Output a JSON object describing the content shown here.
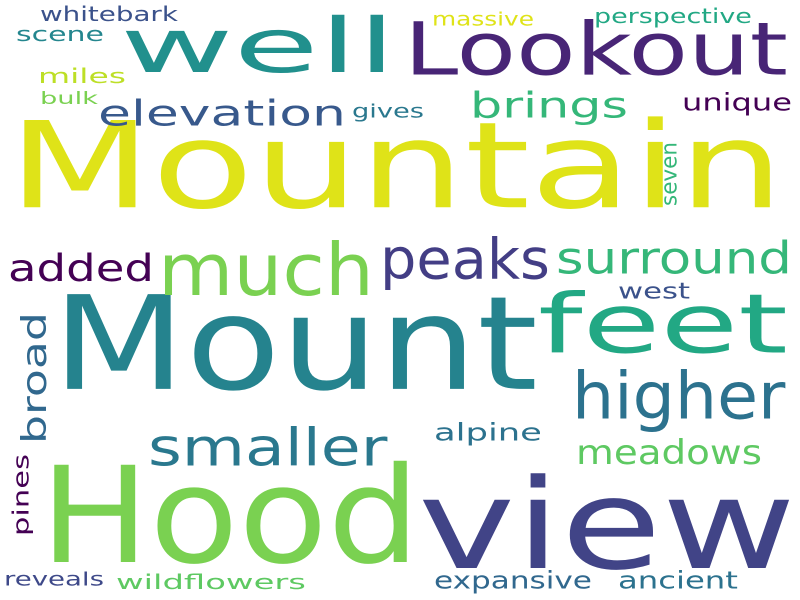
{
  "words": [
    {
      "id": "mountain",
      "text": "Mountain",
      "color": "#dfe318"
    },
    {
      "id": "mount",
      "text": "Mount",
      "color": "#25838e"
    },
    {
      "id": "hood",
      "text": "Hood",
      "color": "#7ad151"
    },
    {
      "id": "view",
      "text": "view",
      "color": "#414487"
    },
    {
      "id": "well",
      "text": "well",
      "color": "#21908d"
    },
    {
      "id": "lookout",
      "text": "Lookout",
      "color": "#482576"
    },
    {
      "id": "much",
      "text": "much",
      "color": "#7ad151"
    },
    {
      "id": "feet",
      "text": "feet",
      "color": "#22a884"
    },
    {
      "id": "higher",
      "text": "higher",
      "color": "#2c728e"
    },
    {
      "id": "peaks",
      "text": "peaks",
      "color": "#433e85"
    },
    {
      "id": "surround",
      "text": "surround",
      "color": "#35b779"
    },
    {
      "id": "smaller",
      "text": "smaller",
      "color": "#2a788e"
    },
    {
      "id": "added",
      "text": "added",
      "color": "#440154"
    },
    {
      "id": "elevation",
      "text": "elevation",
      "color": "#38598c"
    },
    {
      "id": "brings",
      "text": "brings",
      "color": "#35b779"
    },
    {
      "id": "meadows",
      "text": "meadows",
      "color": "#5ec962"
    },
    {
      "id": "broad",
      "text": "broad",
      "color": "#31688e"
    },
    {
      "id": "unique",
      "text": "unique",
      "color": "#440154"
    },
    {
      "id": "seven",
      "text": "seven",
      "color": "#35b779"
    },
    {
      "id": "expansive",
      "text": "expansive",
      "color": "#31688e"
    },
    {
      "id": "ancient",
      "text": "ancient",
      "color": "#2c728e"
    },
    {
      "id": "alpine",
      "text": "alpine",
      "color": "#2c728e"
    },
    {
      "id": "west",
      "text": "west",
      "color": "#3b528b"
    },
    {
      "id": "whitebark",
      "text": "whitebark",
      "color": "#3b528b"
    },
    {
      "id": "scene",
      "text": "scene",
      "color": "#24868e"
    },
    {
      "id": "miles",
      "text": "miles",
      "color": "#bddf26"
    },
    {
      "id": "bulk",
      "text": "bulk",
      "color": "#7ad151"
    },
    {
      "id": "massive",
      "text": "massive",
      "color": "#dfe318"
    },
    {
      "id": "perspective",
      "text": "perspective",
      "color": "#22a884"
    },
    {
      "id": "gives",
      "text": "gives",
      "color": "#2a788e"
    },
    {
      "id": "pines",
      "text": "pines",
      "color": "#440154"
    },
    {
      "id": "reveals",
      "text": "reveals",
      "color": "#3e4989"
    },
    {
      "id": "wildflowers",
      "text": "wildflowers",
      "color": "#5ec962"
    }
  ]
}
